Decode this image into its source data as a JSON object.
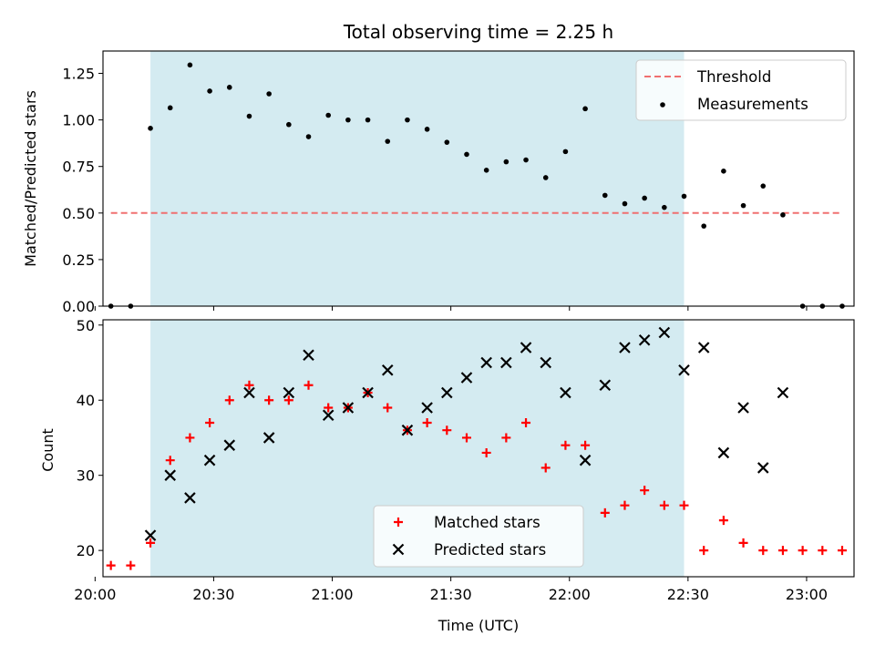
{
  "chart_data": [
    {
      "type": "scatter",
      "title": "Total observing time = 2.25 h",
      "xlabel": "",
      "ylabel": "Matched/Predicted stars",
      "xlim": [
        "20:02",
        "23:12"
      ],
      "ylim": [
        0,
        1.37
      ],
      "yticks": [
        "0.00",
        "0.25",
        "0.50",
        "0.75",
        "1.00",
        "1.25"
      ],
      "highlight_span": [
        "20:14",
        "22:29"
      ],
      "highlight_color": "#d4ebf1",
      "threshold": {
        "name": "Threshold",
        "value": 0.5,
        "x_range": [
          "20:04",
          "23:09"
        ],
        "color": "#f07070",
        "style": "dashed"
      },
      "series": [
        {
          "name": "Measurements",
          "color": "#000000",
          "marker": "dot",
          "points": [
            [
              "20:04",
              0.0
            ],
            [
              "20:09",
              0.0
            ],
            [
              "20:14",
              0.955
            ],
            [
              "20:19",
              1.065
            ],
            [
              "20:24",
              1.295
            ],
            [
              "20:29",
              1.155
            ],
            [
              "20:34",
              1.175
            ],
            [
              "20:39",
              1.02
            ],
            [
              "20:44",
              1.14
            ],
            [
              "20:49",
              0.975
            ],
            [
              "20:54",
              0.91
            ],
            [
              "20:59",
              1.025
            ],
            [
              "21:04",
              1.0
            ],
            [
              "21:09",
              1.0
            ],
            [
              "21:14",
              0.885
            ],
            [
              "21:19",
              1.0
            ],
            [
              "21:24",
              0.95
            ],
            [
              "21:29",
              0.88
            ],
            [
              "21:34",
              0.815
            ],
            [
              "21:39",
              0.73
            ],
            [
              "21:44",
              0.775
            ],
            [
              "21:49",
              0.785
            ],
            [
              "21:54",
              0.69
            ],
            [
              "21:59",
              0.83
            ],
            [
              "22:04",
              1.06
            ],
            [
              "22:09",
              0.595
            ],
            [
              "22:14",
              0.55
            ],
            [
              "22:19",
              0.58
            ],
            [
              "22:24",
              0.53
            ],
            [
              "22:29",
              0.59
            ],
            [
              "22:34",
              0.43
            ],
            [
              "22:39",
              0.725
            ],
            [
              "22:44",
              0.54
            ],
            [
              "22:49",
              0.645
            ],
            [
              "22:54",
              0.49
            ],
            [
              "22:59",
              0.0
            ],
            [
              "23:04",
              0.0
            ],
            [
              "23:09",
              0.0
            ]
          ]
        }
      ],
      "legend": {
        "placement": "upper right",
        "entries": [
          "Threshold",
          "Measurements"
        ]
      }
    },
    {
      "type": "scatter",
      "title": "",
      "xlabel": "Time (UTC)",
      "ylabel": "Count",
      "xlim": [
        "20:02",
        "23:12"
      ],
      "ylim": [
        16.5,
        50.7
      ],
      "yticks": [
        "20",
        "30",
        "40",
        "50"
      ],
      "xticks": [
        "20:00",
        "20:30",
        "21:00",
        "21:30",
        "22:00",
        "22:30",
        "23:00"
      ],
      "highlight_span": [
        "20:14",
        "22:29"
      ],
      "highlight_color": "#d4ebf1",
      "series": [
        {
          "name": "Matched stars",
          "color": "#ff0000",
          "marker": "plus",
          "points": [
            [
              "20:04",
              18
            ],
            [
              "20:09",
              18
            ],
            [
              "20:14",
              21
            ],
            [
              "20:19",
              32
            ],
            [
              "20:24",
              35
            ],
            [
              "20:29",
              37
            ],
            [
              "20:34",
              40
            ],
            [
              "20:39",
              42
            ],
            [
              "20:44",
              40
            ],
            [
              "20:49",
              40
            ],
            [
              "20:54",
              42
            ],
            [
              "20:59",
              39
            ],
            [
              "21:04",
              39
            ],
            [
              "21:09",
              41
            ],
            [
              "21:14",
              39
            ],
            [
              "21:19",
              36
            ],
            [
              "21:24",
              37
            ],
            [
              "21:29",
              36
            ],
            [
              "21:34",
              35
            ],
            [
              "21:39",
              33
            ],
            [
              "21:44",
              35
            ],
            [
              "21:49",
              37
            ],
            [
              "21:54",
              31
            ],
            [
              "21:59",
              34
            ],
            [
              "22:04",
              34
            ],
            [
              "22:09",
              25
            ],
            [
              "22:14",
              26
            ],
            [
              "22:19",
              28
            ],
            [
              "22:24",
              26
            ],
            [
              "22:29",
              26
            ],
            [
              "22:34",
              20
            ],
            [
              "22:39",
              24
            ],
            [
              "22:44",
              21
            ],
            [
              "22:49",
              20
            ],
            [
              "22:54",
              20
            ],
            [
              "22:59",
              20
            ],
            [
              "23:04",
              20
            ],
            [
              "23:09",
              20
            ]
          ]
        },
        {
          "name": "Predicted stars",
          "color": "#000000",
          "marker": "x",
          "points": [
            [
              "20:14",
              22
            ],
            [
              "20:19",
              30
            ],
            [
              "20:24",
              27
            ],
            [
              "20:29",
              32
            ],
            [
              "20:34",
              34
            ],
            [
              "20:39",
              41
            ],
            [
              "20:44",
              35
            ],
            [
              "20:49",
              41
            ],
            [
              "20:54",
              46
            ],
            [
              "20:59",
              38
            ],
            [
              "21:04",
              39
            ],
            [
              "21:09",
              41
            ],
            [
              "21:14",
              44
            ],
            [
              "21:19",
              36
            ],
            [
              "21:24",
              39
            ],
            [
              "21:29",
              41
            ],
            [
              "21:34",
              43
            ],
            [
              "21:39",
              45
            ],
            [
              "21:44",
              45
            ],
            [
              "21:49",
              47
            ],
            [
              "21:54",
              45
            ],
            [
              "21:59",
              41
            ],
            [
              "22:04",
              32
            ],
            [
              "22:09",
              42
            ],
            [
              "22:14",
              47
            ],
            [
              "22:19",
              48
            ],
            [
              "22:24",
              49
            ],
            [
              "22:29",
              44
            ],
            [
              "22:34",
              47
            ],
            [
              "22:39",
              33
            ],
            [
              "22:44",
              39
            ],
            [
              "22:49",
              31
            ],
            [
              "22:54",
              41
            ]
          ]
        }
      ],
      "legend": {
        "placement": "lower center",
        "entries": [
          "Matched stars",
          "Predicted stars"
        ]
      }
    }
  ]
}
